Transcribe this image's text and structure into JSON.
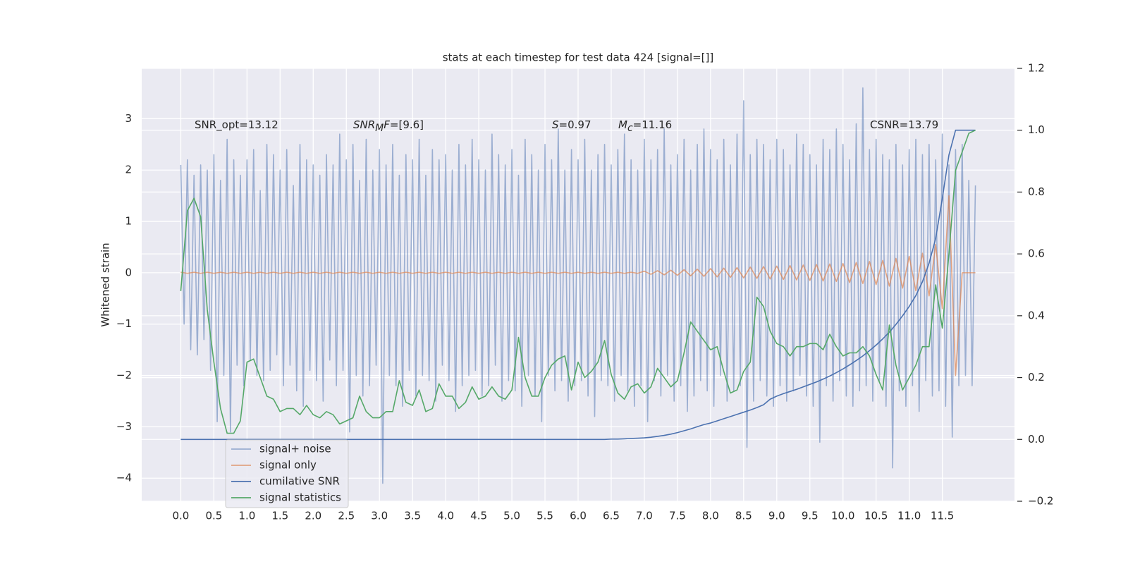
{
  "chart_data": {
    "type": "line",
    "title": "stats at each timestep for test data 424 [signal=[]]",
    "y_label": "Whitened strain",
    "annotations": [
      {
        "parts": [
          {
            "text": "SNR_opt=13.12",
            "style": "plain"
          }
        ]
      },
      {
        "parts": [
          {
            "text": "SNR",
            "style": "math"
          },
          {
            "text": "M",
            "style": "sub"
          },
          {
            "text": "F",
            "style": "math"
          },
          {
            "text": "=[9.6]",
            "style": "plain"
          }
        ]
      },
      {
        "parts": [
          {
            "text": "S",
            "style": "math"
          },
          {
            "text": "=0.97",
            "style": "plain"
          }
        ]
      },
      {
        "parts": [
          {
            "text": "M",
            "style": "math"
          },
          {
            "text": "c",
            "style": "sub"
          },
          {
            "text": "=11.16",
            "style": "plain"
          }
        ]
      },
      {
        "parts": [
          {
            "text": "CSNR=13.79",
            "style": "plain"
          }
        ]
      }
    ],
    "grid": true,
    "legend": "lower left",
    "xlim": [
      -0.59,
      12.59
    ],
    "ylim": [
      -4.45,
      3.98
    ],
    "y2lim": [
      -0.2,
      1.2
    ],
    "xticks": [
      {
        "value": 0,
        "label": "0.0"
      },
      {
        "value": 0.5,
        "label": "0.5"
      },
      {
        "value": 1,
        "label": "1.0"
      },
      {
        "value": 1.5,
        "label": "1.5"
      },
      {
        "value": 2,
        "label": "2.0"
      },
      {
        "value": 2.5,
        "label": "2.5"
      },
      {
        "value": 3,
        "label": "3.0"
      },
      {
        "value": 3.5,
        "label": "3.5"
      },
      {
        "value": 4,
        "label": "4.0"
      },
      {
        "value": 4.5,
        "label": "4.5"
      },
      {
        "value": 5,
        "label": "5.0"
      },
      {
        "value": 5.5,
        "label": "5.5"
      },
      {
        "value": 6,
        "label": "6.0"
      },
      {
        "value": 6.5,
        "label": "6.5"
      },
      {
        "value": 7,
        "label": "7.0"
      },
      {
        "value": 7.5,
        "label": "7.5"
      },
      {
        "value": 8,
        "label": "8.0"
      },
      {
        "value": 8.5,
        "label": "8.5"
      },
      {
        "value": 9,
        "label": "9.0"
      },
      {
        "value": 9.5,
        "label": "9.5"
      },
      {
        "value": 10,
        "label": "10.0"
      },
      {
        "value": 10.5,
        "label": "10.5"
      },
      {
        "value": 11,
        "label": "11.0"
      },
      {
        "value": 11.5,
        "label": "11.5"
      }
    ],
    "yticks": [
      {
        "value": -4,
        "label": "−4"
      },
      {
        "value": -3,
        "label": "−3"
      },
      {
        "value": -2,
        "label": "−2"
      },
      {
        "value": -1,
        "label": "−1"
      },
      0,
      1,
      2,
      3
    ],
    "y2ticks": [
      {
        "value": -0.2,
        "label": "−0.2"
      },
      {
        "value": 0,
        "label": "0.0"
      },
      {
        "value": 0.2,
        "label": "0.2"
      },
      {
        "value": 0.4,
        "label": "0.4"
      },
      {
        "value": 0.6,
        "label": "0.6"
      },
      {
        "value": 0.8,
        "label": "0.8"
      },
      {
        "value": 1,
        "label": "1.0"
      },
      {
        "value": 1.2,
        "label": "1.2"
      }
    ],
    "x": [
      0,
      0.1,
      0.2,
      0.3,
      0.4,
      0.5,
      0.6,
      0.7,
      0.8,
      0.9,
      1,
      1.1,
      1.2,
      1.3,
      1.4,
      1.5,
      1.6,
      1.7,
      1.8,
      1.9,
      2,
      2.1,
      2.2,
      2.3,
      2.4,
      2.5,
      2.6,
      2.7,
      2.8,
      2.9,
      3,
      3.1,
      3.2,
      3.3,
      3.4,
      3.5,
      3.6,
      3.7,
      3.8,
      3.9,
      4,
      4.1,
      4.2,
      4.3,
      4.4,
      4.5,
      4.6,
      4.7,
      4.8,
      4.9,
      5,
      5.1,
      5.2,
      5.3,
      5.4,
      5.5,
      5.6,
      5.7,
      5.8,
      5.9,
      6,
      6.1,
      6.2,
      6.3,
      6.4,
      6.5,
      6.6,
      6.7,
      6.8,
      6.9,
      7,
      7.1,
      7.2,
      7.3,
      7.4,
      7.5,
      7.6,
      7.7,
      7.8,
      7.9,
      8,
      8.1,
      8.2,
      8.3,
      8.4,
      8.5,
      8.6,
      8.7,
      8.8,
      8.9,
      9,
      9.1,
      9.2,
      9.3,
      9.4,
      9.5,
      9.6,
      9.7,
      9.8,
      9.9,
      10,
      10.1,
      10.2,
      10.3,
      10.4,
      10.5,
      10.6,
      10.7,
      10.8,
      10.9,
      11,
      11.1,
      11.2,
      11.3,
      11.4,
      11.5,
      11.6,
      11.7,
      11.8,
      11.9,
      12
    ],
    "series": [
      {
        "name": "signal+ noise",
        "color": "#4c72b0",
        "alpha": 0.5,
        "x": [
          0,
          0.05,
          0.1,
          0.15,
          0.2,
          0.25,
          0.3,
          0.35,
          0.4,
          0.45,
          0.5,
          0.55,
          0.6,
          0.65,
          0.7,
          0.75,
          0.8,
          0.85,
          0.9,
          0.95,
          1,
          1.05,
          1.1,
          1.15,
          1.2,
          1.25,
          1.3,
          1.35,
          1.4,
          1.45,
          1.5,
          1.55,
          1.6,
          1.65,
          1.7,
          1.75,
          1.8,
          1.85,
          1.9,
          1.95,
          2,
          2.05,
          2.1,
          2.15,
          2.2,
          2.25,
          2.3,
          2.35,
          2.4,
          2.45,
          2.5,
          2.55,
          2.6,
          2.65,
          2.7,
          2.75,
          2.8,
          2.85,
          2.9,
          2.95,
          3,
          3.05,
          3.1,
          3.15,
          3.2,
          3.25,
          3.3,
          3.35,
          3.4,
          3.45,
          3.5,
          3.55,
          3.6,
          3.65,
          3.7,
          3.75,
          3.8,
          3.85,
          3.9,
          3.95,
          4,
          4.05,
          4.1,
          4.15,
          4.2,
          4.25,
          4.3,
          4.35,
          4.4,
          4.45,
          4.5,
          4.55,
          4.6,
          4.65,
          4.7,
          4.75,
          4.8,
          4.85,
          4.9,
          4.95,
          5,
          5.05,
          5.1,
          5.15,
          5.2,
          5.25,
          5.3,
          5.35,
          5.4,
          5.45,
          5.5,
          5.55,
          5.6,
          5.65,
          5.7,
          5.75,
          5.8,
          5.85,
          5.9,
          5.95,
          6,
          6.05,
          6.1,
          6.15,
          6.2,
          6.25,
          6.3,
          6.35,
          6.4,
          6.45,
          6.5,
          6.55,
          6.6,
          6.65,
          6.7,
          6.75,
          6.8,
          6.85,
          6.9,
          6.95,
          7,
          7.05,
          7.1,
          7.15,
          7.2,
          7.25,
          7.3,
          7.35,
          7.4,
          7.45,
          7.5,
          7.55,
          7.6,
          7.65,
          7.7,
          7.75,
          7.8,
          7.85,
          7.9,
          7.95,
          8,
          8.05,
          8.1,
          8.15,
          8.2,
          8.25,
          8.3,
          8.35,
          8.4,
          8.45,
          8.5,
          8.55,
          8.6,
          8.65,
          8.7,
          8.75,
          8.8,
          8.85,
          8.9,
          8.95,
          9,
          9.05,
          9.1,
          9.15,
          9.2,
          9.25,
          9.3,
          9.35,
          9.4,
          9.45,
          9.5,
          9.55,
          9.6,
          9.65,
          9.7,
          9.75,
          9.8,
          9.85,
          9.9,
          9.95,
          10,
          10.05,
          10.1,
          10.15,
          10.2,
          10.25,
          10.3,
          10.35,
          10.4,
          10.45,
          10.5,
          10.55,
          10.6,
          10.65,
          10.7,
          10.75,
          10.8,
          10.85,
          10.9,
          10.95,
          11,
          11.05,
          11.1,
          11.15,
          11.2,
          11.25,
          11.3,
          11.35,
          11.4,
          11.45,
          11.5,
          11.55,
          11.6,
          11.65,
          11.7,
          11.75,
          11.8,
          11.85,
          11.9,
          11.95,
          12
        ],
        "values": [
          2.1,
          -1.0,
          2.2,
          -1.5,
          1.9,
          -1.6,
          2.1,
          -1.3,
          2.0,
          -1.9,
          2.3,
          -2.9,
          1.8,
          -2.0,
          2.6,
          -3.1,
          2.2,
          -1.8,
          1.9,
          -2.2,
          2.2,
          -1.7,
          2.4,
          -2.0,
          1.6,
          -2.1,
          2.5,
          -1.9,
          2.3,
          -1.6,
          2.0,
          -2.2,
          2.4,
          -1.8,
          1.7,
          -2.3,
          2.5,
          -2.6,
          2.2,
          -1.9,
          2.1,
          -2.1,
          1.9,
          -2.5,
          2.3,
          -1.7,
          2.1,
          -2.2,
          2.7,
          -1.9,
          2.2,
          -3.1,
          2.5,
          -2.0,
          1.8,
          -2.4,
          2.6,
          -2.2,
          2.0,
          -1.8,
          2.4,
          -4.1,
          2.1,
          -2.0,
          2.5,
          -2.2,
          1.9,
          -2.6,
          2.3,
          -1.9,
          2.2,
          -2.4,
          2.6,
          -2.0,
          1.9,
          -2.1,
          2.4,
          -2.5,
          2.2,
          -1.8,
          2.3,
          -2.1,
          2.0,
          -2.7,
          2.5,
          -2.2,
          2.1,
          -2.0,
          2.6,
          -1.9,
          2.2,
          -2.4,
          2.0,
          -2.2,
          2.7,
          -1.8,
          2.3,
          -2.5,
          2.1,
          -2.1,
          2.4,
          -2.3,
          1.9,
          -2.6,
          2.6,
          -2.0,
          2.3,
          -2.4,
          2.0,
          -2.9,
          2.5,
          -2.0,
          2.2,
          -2.3,
          2.8,
          -2.1,
          2.0,
          -2.5,
          2.4,
          -2.2,
          2.2,
          -2.1,
          2.6,
          -2.4,
          2.0,
          -2.8,
          2.3,
          -2.1,
          2.5,
          -2.2,
          2.1,
          -2.5,
          2.4,
          -2.0,
          2.7,
          -2.3,
          2.2,
          -2.6,
          2.0,
          -2.2,
          2.6,
          -2.9,
          2.2,
          -2.1,
          2.4,
          -2.4,
          2.8,
          -2.0,
          2.1,
          -2.5,
          2.3,
          -2.2,
          2.6,
          -2.7,
          2.0,
          -2.4,
          2.5,
          -2.1,
          2.8,
          -2.3,
          2.4,
          -2.6,
          2.2,
          -2.0,
          2.6,
          -2.5,
          2.1,
          -2.3,
          2.7,
          -2.2,
          3.35,
          -3.4,
          2.3,
          -2.5,
          2.6,
          -2.1,
          2.5,
          -2.4,
          2.2,
          -2.6,
          2.6,
          -2.2,
          2.4,
          -2.5,
          2.1,
          -2.3,
          2.7,
          -2.0,
          2.5,
          -2.4,
          2.3,
          -2.6,
          2.1,
          -3.3,
          2.6,
          -2.2,
          2.4,
          -2.5,
          2.8,
          -2.1,
          2.5,
          -2.4,
          2.2,
          -2.6,
          2.9,
          -2.3,
          3.6,
          -2.2,
          2.4,
          -2.5,
          2.6,
          -2.1,
          2.3,
          -2.6,
          2.2,
          -3.8,
          2.5,
          -2.3,
          2.1,
          -2.6,
          2.4,
          -2.2,
          2.6,
          -2.7,
          2.3,
          -2.1,
          2.5,
          -2.4,
          2.2,
          -2.3,
          2.7,
          -2.6,
          2.1,
          -3.2,
          2.4,
          -2.2,
          2.5,
          -2.0,
          1.8,
          -2.2,
          1.7
        ]
      },
      {
        "name": "signal only",
        "color": "#dd8452",
        "alpha": 0.7,
        "values": [
          0.01,
          -0.01,
          0.01,
          -0.01,
          0.01,
          -0.01,
          0.01,
          -0.01,
          0.01,
          -0.01,
          0.01,
          -0.01,
          0.01,
          -0.01,
          0.01,
          -0.01,
          0.01,
          -0.01,
          0.01,
          -0.01,
          0.01,
          -0.01,
          0.01,
          -0.01,
          0.01,
          -0.01,
          0.01,
          -0.01,
          0.01,
          -0.01,
          0.01,
          -0.01,
          0.01,
          -0.01,
          0.01,
          -0.01,
          0.01,
          -0.01,
          0.01,
          -0.01,
          0.01,
          -0.01,
          0.01,
          -0.01,
          0.01,
          -0.01,
          0.01,
          -0.01,
          0.01,
          -0.01,
          0.01,
          -0.01,
          0.01,
          -0.01,
          0.01,
          -0.01,
          0.01,
          -0.01,
          0.01,
          -0.01,
          0.01,
          -0.01,
          0.01,
          -0.01,
          0.01,
          -0.01,
          0.01,
          -0.01,
          0.01,
          -0.01,
          0.03,
          -0.03,
          0.04,
          -0.04,
          0.05,
          -0.05,
          0.06,
          -0.06,
          0.07,
          -0.07,
          0.08,
          -0.08,
          0.09,
          -0.09,
          0.1,
          -0.1,
          0.11,
          -0.11,
          0.12,
          -0.12,
          0.13,
          -0.13,
          0.14,
          -0.14,
          0.15,
          -0.15,
          0.16,
          -0.16,
          0.17,
          -0.17,
          0.18,
          -0.19,
          0.2,
          -0.21,
          0.22,
          -0.23,
          0.24,
          -0.26,
          0.28,
          -0.3,
          0.32,
          -0.35,
          0.38,
          -0.45,
          0.55,
          -0.7,
          1.5,
          -2.0,
          0,
          0,
          0
        ]
      },
      {
        "name": "cumilative SNR",
        "color": "#4c72b0",
        "alpha": 1,
        "axis": "y2",
        "values": [
          0,
          0,
          0,
          0,
          0,
          0,
          0,
          0,
          0,
          0,
          0,
          0,
          0,
          0,
          0,
          0,
          0,
          0,
          0,
          0,
          0,
          0,
          0,
          0,
          0,
          0,
          0,
          0,
          0,
          0,
          0,
          0,
          0,
          0,
          0,
          0,
          0,
          0,
          0,
          0,
          0,
          0,
          0,
          0,
          0,
          0,
          0,
          0,
          0,
          0,
          0,
          0,
          0,
          0,
          0,
          0,
          0,
          0,
          0,
          0,
          0,
          0,
          0,
          0,
          0,
          0.001,
          0.001,
          0.002,
          0.003,
          0.004,
          0.005,
          0.007,
          0.01,
          0.013,
          0.017,
          0.022,
          0.028,
          0.034,
          0.041,
          0.048,
          0.053,
          0.06,
          0.067,
          0.074,
          0.081,
          0.088,
          0.095,
          0.103,
          0.112,
          0.13,
          0.14,
          0.148,
          0.155,
          0.162,
          0.17,
          0.178,
          0.186,
          0.195,
          0.205,
          0.216,
          0.228,
          0.241,
          0.255,
          0.27,
          0.287,
          0.305,
          0.325,
          0.347,
          0.372,
          0.4,
          0.43,
          0.465,
          0.51,
          0.57,
          0.65,
          0.78,
          0.92,
          1.0,
          1.0,
          1.0,
          1.0
        ]
      },
      {
        "name": "signal statistics",
        "color": "#55a868",
        "alpha": 1,
        "axis": "y2",
        "values": [
          0.48,
          0.74,
          0.78,
          0.72,
          0.42,
          0.25,
          0.1,
          0.02,
          0.02,
          0.06,
          0.25,
          0.26,
          0.2,
          0.14,
          0.13,
          0.09,
          0.1,
          0.1,
          0.08,
          0.11,
          0.08,
          0.07,
          0.09,
          0.08,
          0.05,
          0.06,
          0.07,
          0.14,
          0.09,
          0.07,
          0.07,
          0.09,
          0.09,
          0.19,
          0.12,
          0.11,
          0.16,
          0.09,
          0.1,
          0.18,
          0.14,
          0.14,
          0.1,
          0.12,
          0.17,
          0.13,
          0.14,
          0.17,
          0.14,
          0.13,
          0.16,
          0.33,
          0.2,
          0.14,
          0.14,
          0.2,
          0.24,
          0.26,
          0.27,
          0.16,
          0.25,
          0.2,
          0.22,
          0.25,
          0.32,
          0.21,
          0.15,
          0.13,
          0.17,
          0.18,
          0.15,
          0.17,
          0.23,
          0.2,
          0.17,
          0.19,
          0.28,
          0.38,
          0.35,
          0.32,
          0.29,
          0.3,
          0.22,
          0.15,
          0.16,
          0.22,
          0.25,
          0.46,
          0.43,
          0.35,
          0.31,
          0.3,
          0.27,
          0.3,
          0.3,
          0.31,
          0.31,
          0.29,
          0.34,
          0.3,
          0.27,
          0.28,
          0.28,
          0.3,
          0.27,
          0.21,
          0.16,
          0.37,
          0.24,
          0.16,
          0.2,
          0.24,
          0.3,
          0.3,
          0.5,
          0.36,
          0.6,
          0.87,
          0.93,
          0.99,
          1.0
        ]
      }
    ]
  }
}
